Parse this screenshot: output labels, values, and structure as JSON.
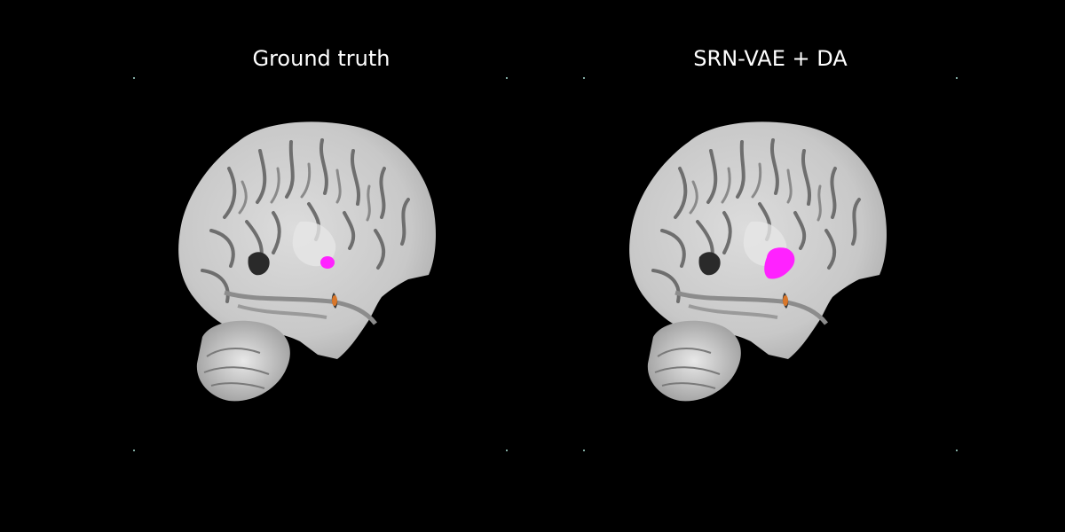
{
  "panels": [
    {
      "title": "Ground truth",
      "lesion_color": "#ff22ff",
      "secondary_color": "#d9772a"
    },
    {
      "title": "SRN-VAE + DA",
      "lesion_color": "#ff22ff",
      "secondary_color": "#d9772a"
    }
  ],
  "colors": {
    "background": "#000000",
    "title": "#ffffff",
    "marker": "#7fa9a0"
  }
}
